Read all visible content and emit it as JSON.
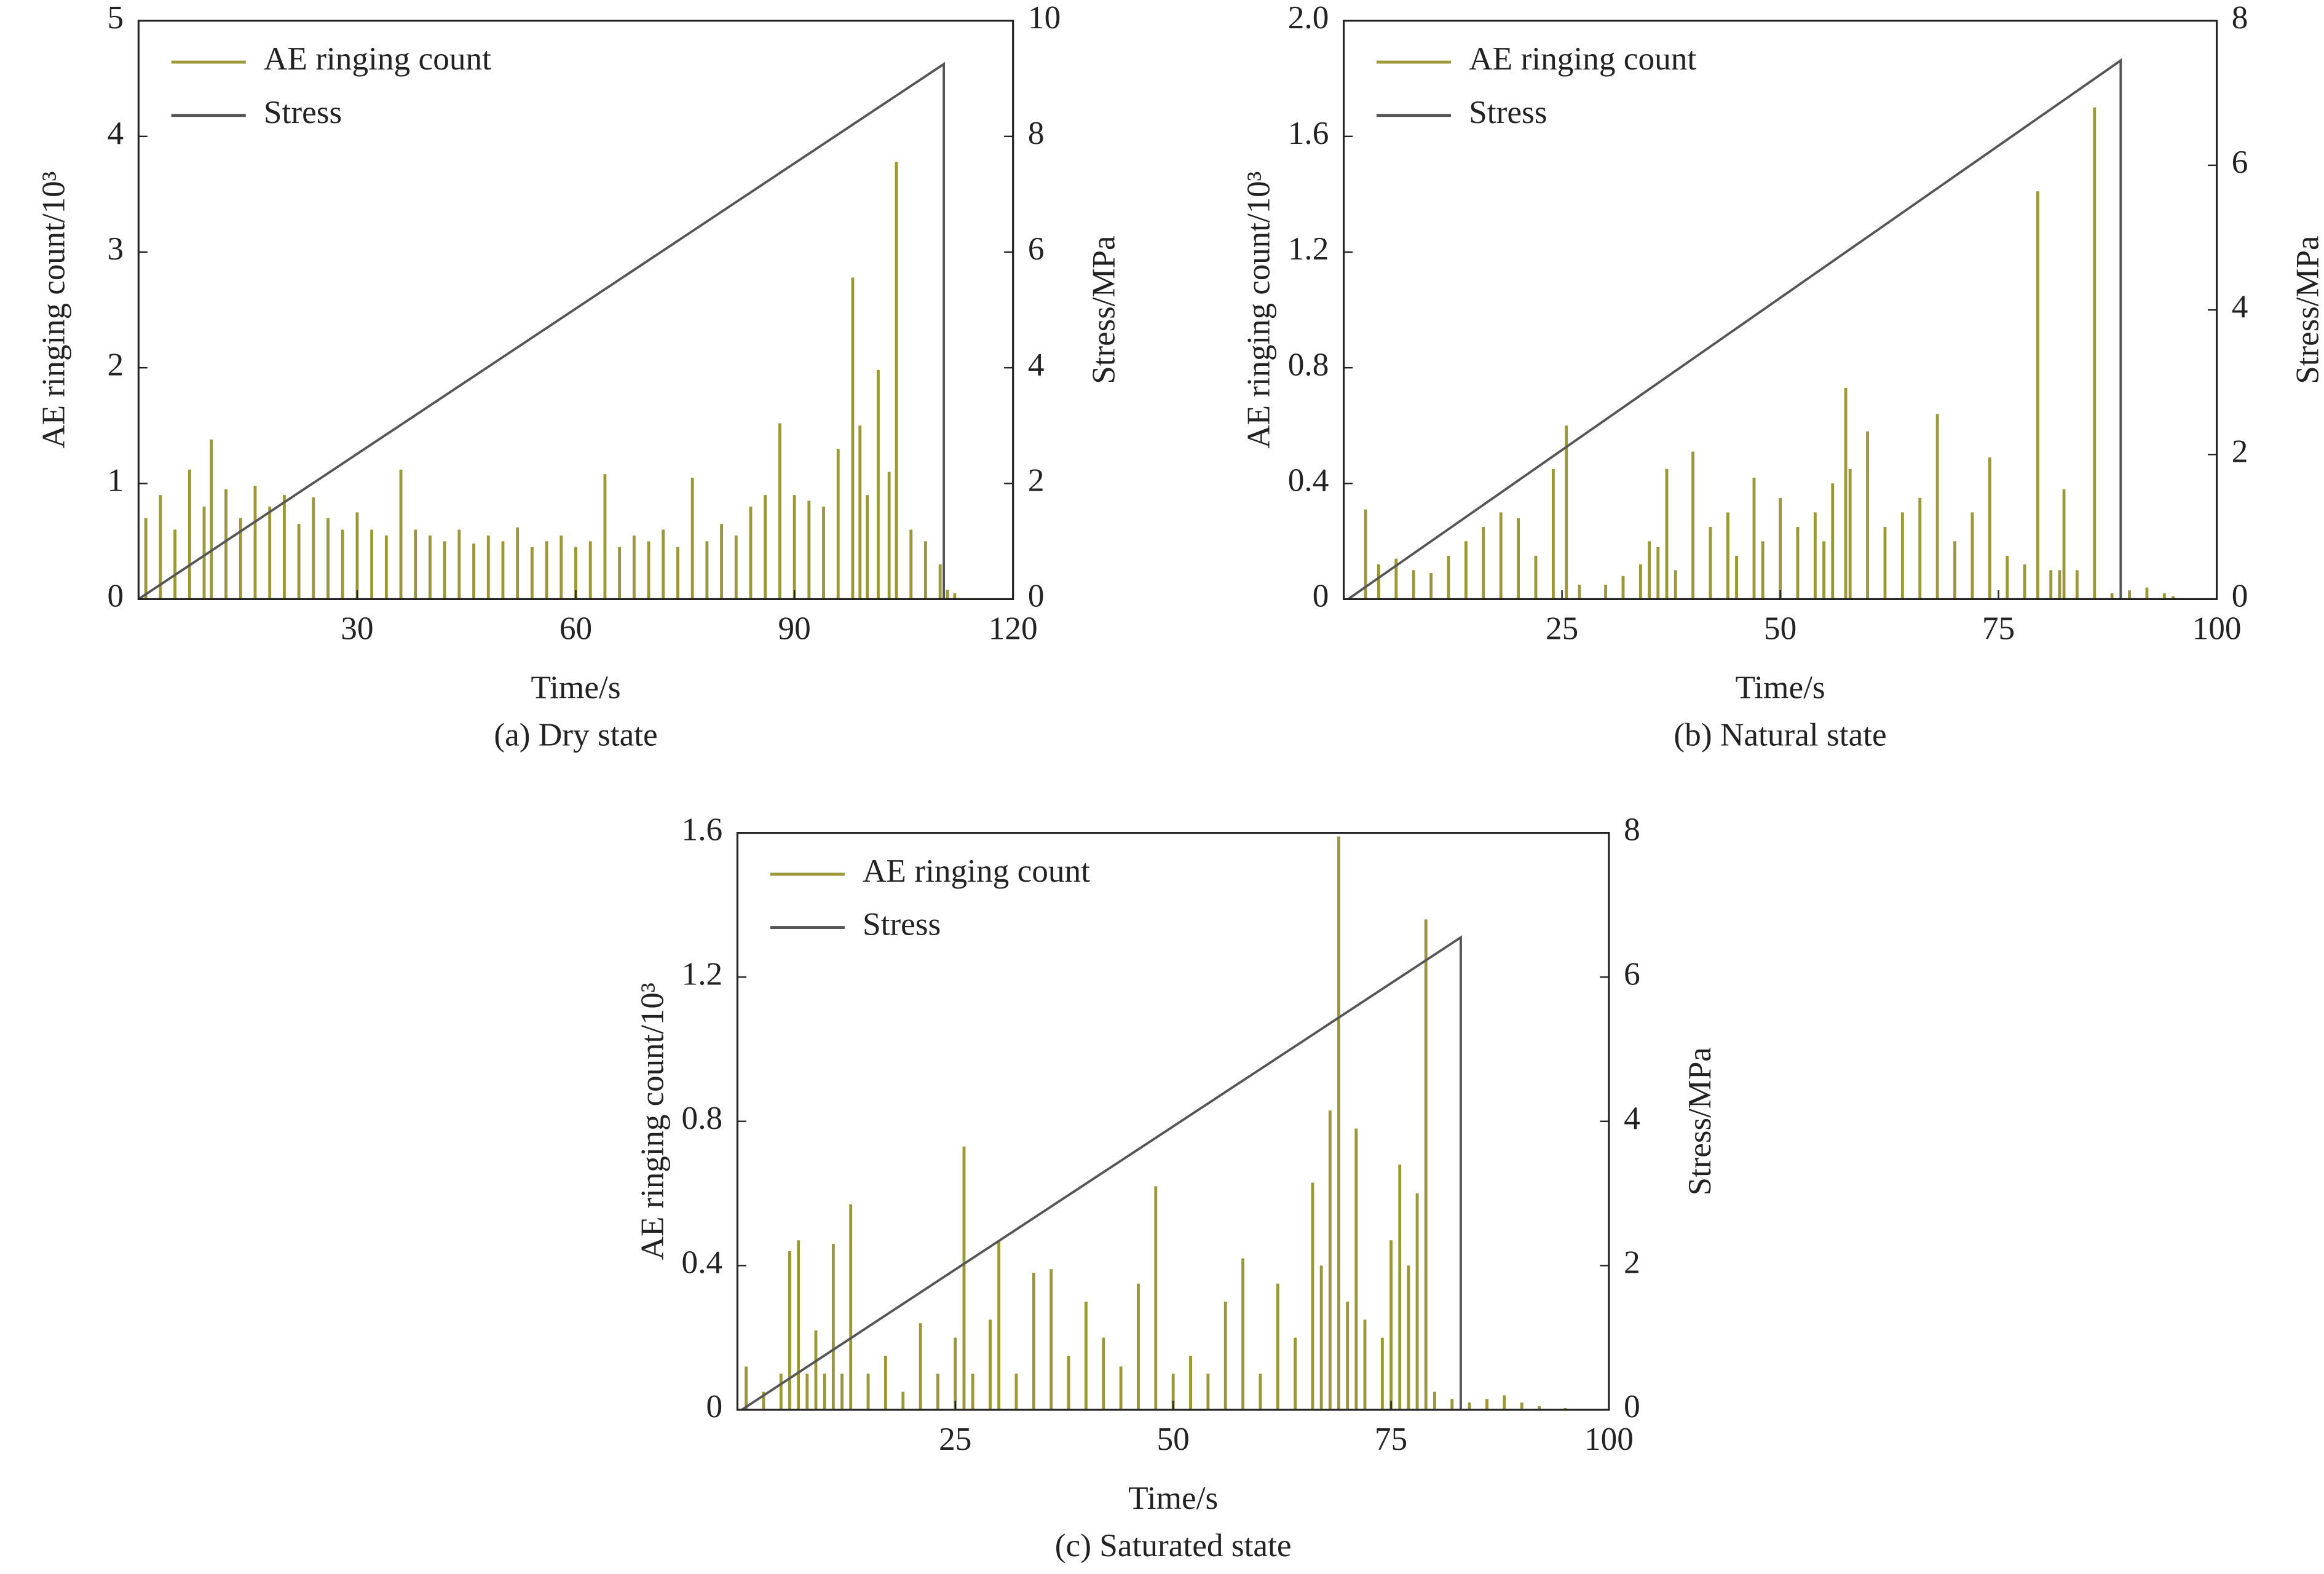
{
  "chart_data": [
    {
      "type": "line",
      "title": "(a) Dry state",
      "xlabel": "Time/s",
      "ylabel": "AE ringing count/10³",
      "y2label": "Stress/MPa",
      "xlim": [
        0,
        120
      ],
      "xticks": [
        30,
        60,
        90,
        120
      ],
      "ylim": [
        0,
        5
      ],
      "yticks": [
        0,
        1,
        2,
        3,
        4,
        5
      ],
      "y2lim": [
        0,
        10
      ],
      "y2ticks": [
        0,
        2,
        4,
        6,
        8,
        10
      ],
      "legend": "upper-left",
      "series": [
        {
          "name": "AE ringing count",
          "color": "#9c9738",
          "style": "spikes",
          "x": [
            1,
            3,
            5,
            7,
            9,
            10,
            12,
            14,
            16,
            18,
            20,
            22,
            24,
            26,
            28,
            30,
            32,
            34,
            36,
            38,
            40,
            42,
            44,
            46,
            48,
            50,
            52,
            54,
            56,
            58,
            60,
            62,
            64,
            66,
            68,
            70,
            72,
            74,
            76,
            78,
            80,
            82,
            84,
            86,
            88,
            90,
            92,
            94,
            96,
            98,
            99,
            100,
            101.5,
            103,
            104,
            106,
            108,
            110,
            111,
            112
          ],
          "values": [
            0.7,
            0.9,
            0.6,
            1.12,
            0.8,
            1.38,
            0.95,
            0.7,
            0.98,
            0.8,
            0.9,
            0.65,
            0.88,
            0.7,
            0.6,
            0.75,
            0.6,
            0.55,
            1.12,
            0.6,
            0.55,
            0.5,
            0.6,
            0.48,
            0.55,
            0.5,
            0.62,
            0.45,
            0.5,
            0.55,
            0.45,
            0.5,
            1.08,
            0.45,
            0.55,
            0.5,
            0.6,
            0.45,
            1.05,
            0.5,
            0.65,
            0.55,
            0.8,
            0.9,
            1.52,
            0.9,
            0.85,
            0.8,
            1.3,
            2.78,
            1.5,
            0.9,
            1.98,
            1.1,
            3.78,
            0.6,
            0.5,
            0.3,
            0.08,
            0.05
          ]
        },
        {
          "name": "Stress",
          "color": "#555555",
          "axis": "y2",
          "x": [
            0,
            110.5,
            110.5
          ],
          "values": [
            0,
            9.25,
            0
          ]
        }
      ]
    },
    {
      "type": "line",
      "title": "(b) Natural state",
      "xlabel": "Time/s",
      "ylabel": "AE ringing count/10³",
      "y2label": "Stress/MPa",
      "xlim": [
        0,
        100
      ],
      "xticks": [
        25,
        50,
        75,
        100
      ],
      "ylim": [
        0,
        2
      ],
      "yticks": [
        0,
        0.4,
        0.8,
        1.2,
        1.6,
        {
          "value": 2,
          "label": "2.0"
        }
      ],
      "y2lim": [
        0,
        8
      ],
      "y2ticks": [
        0,
        2,
        4,
        6,
        8
      ],
      "legend": "upper-left",
      "series": [
        {
          "name": "AE ringing count",
          "color": "#9c9738",
          "style": "spikes",
          "x": [
            2.5,
            4,
            6,
            8,
            10,
            12,
            14,
            16,
            18,
            20,
            22,
            24,
            25.5,
            27,
            30,
            32,
            34,
            35,
            36,
            37,
            38,
            40,
            42,
            44,
            45,
            47,
            48,
            50,
            52,
            54,
            55,
            56,
            57.5,
            58,
            60,
            62,
            64,
            66,
            68,
            70,
            72,
            74,
            76,
            78,
            79.5,
            81,
            82,
            82.5,
            84,
            86,
            88,
            90,
            92,
            94,
            95
          ],
          "values": [
            0.31,
            0.12,
            0.14,
            0.1,
            0.09,
            0.15,
            0.2,
            0.25,
            0.3,
            0.28,
            0.15,
            0.45,
            0.6,
            0.05,
            0.05,
            0.08,
            0.12,
            0.2,
            0.18,
            0.45,
            0.1,
            0.51,
            0.25,
            0.3,
            0.15,
            0.42,
            0.2,
            0.35,
            0.25,
            0.3,
            0.2,
            0.4,
            0.73,
            0.45,
            0.58,
            0.25,
            0.3,
            0.35,
            0.64,
            0.2,
            0.3,
            0.49,
            0.15,
            0.12,
            1.41,
            0.1,
            0.1,
            0.38,
            0.1,
            1.7,
            0.02,
            0.03,
            0.04,
            0.02,
            0.01
          ]
        },
        {
          "name": "Stress",
          "color": "#555555",
          "axis": "y2",
          "x": [
            0.5,
            89,
            89
          ],
          "values": [
            0,
            7.45,
            0
          ]
        }
      ]
    },
    {
      "type": "line",
      "title": "(c) Saturated state",
      "xlabel": "Time/s",
      "ylabel": "AE ringing count/10³",
      "y2label": "Stress/MPa",
      "xlim": [
        0,
        100
      ],
      "xticks": [
        25,
        50,
        75,
        100
      ],
      "ylim": [
        0,
        1.6
      ],
      "yticks": [
        0,
        0.4,
        0.8,
        1.2,
        1.6
      ],
      "y2lim": [
        0,
        8
      ],
      "y2ticks": [
        0,
        2,
        4,
        6,
        8
      ],
      "legend": "upper-left",
      "series": [
        {
          "name": "AE ringing count",
          "color": "#9c9738",
          "style": "spikes",
          "x": [
            1,
            3,
            5,
            6,
            7,
            8,
            9,
            10,
            11,
            12,
            13,
            15,
            17,
            19,
            21,
            23,
            25,
            26,
            27,
            29,
            30,
            32,
            34,
            36,
            38,
            40,
            42,
            44,
            46,
            48,
            50,
            52,
            54,
            56,
            58,
            60,
            62,
            64,
            66,
            67,
            68,
            69,
            70,
            71,
            72,
            74,
            75,
            76,
            77,
            78,
            79,
            80,
            82,
            84,
            86,
            88,
            90,
            92,
            95
          ],
          "values": [
            0.12,
            0.05,
            0.1,
            0.44,
            0.47,
            0.1,
            0.22,
            0.1,
            0.46,
            0.1,
            0.57,
            0.1,
            0.15,
            0.05,
            0.24,
            0.1,
            0.2,
            0.73,
            0.1,
            0.25,
            0.47,
            0.1,
            0.38,
            0.39,
            0.15,
            0.3,
            0.2,
            0.12,
            0.35,
            0.62,
            0.1,
            0.15,
            0.1,
            0.3,
            0.42,
            0.1,
            0.35,
            0.2,
            0.63,
            0.4,
            0.83,
            1.59,
            0.3,
            0.78,
            0.25,
            0.2,
            0.47,
            0.68,
            0.4,
            0.6,
            1.36,
            0.05,
            0.03,
            0.02,
            0.03,
            0.04,
            0.02,
            0.01,
            0.005
          ]
        },
        {
          "name": "Stress",
          "color": "#555555",
          "axis": "y2",
          "x": [
            0.5,
            83,
            83
          ],
          "values": [
            0,
            6.55,
            0
          ]
        }
      ]
    }
  ]
}
